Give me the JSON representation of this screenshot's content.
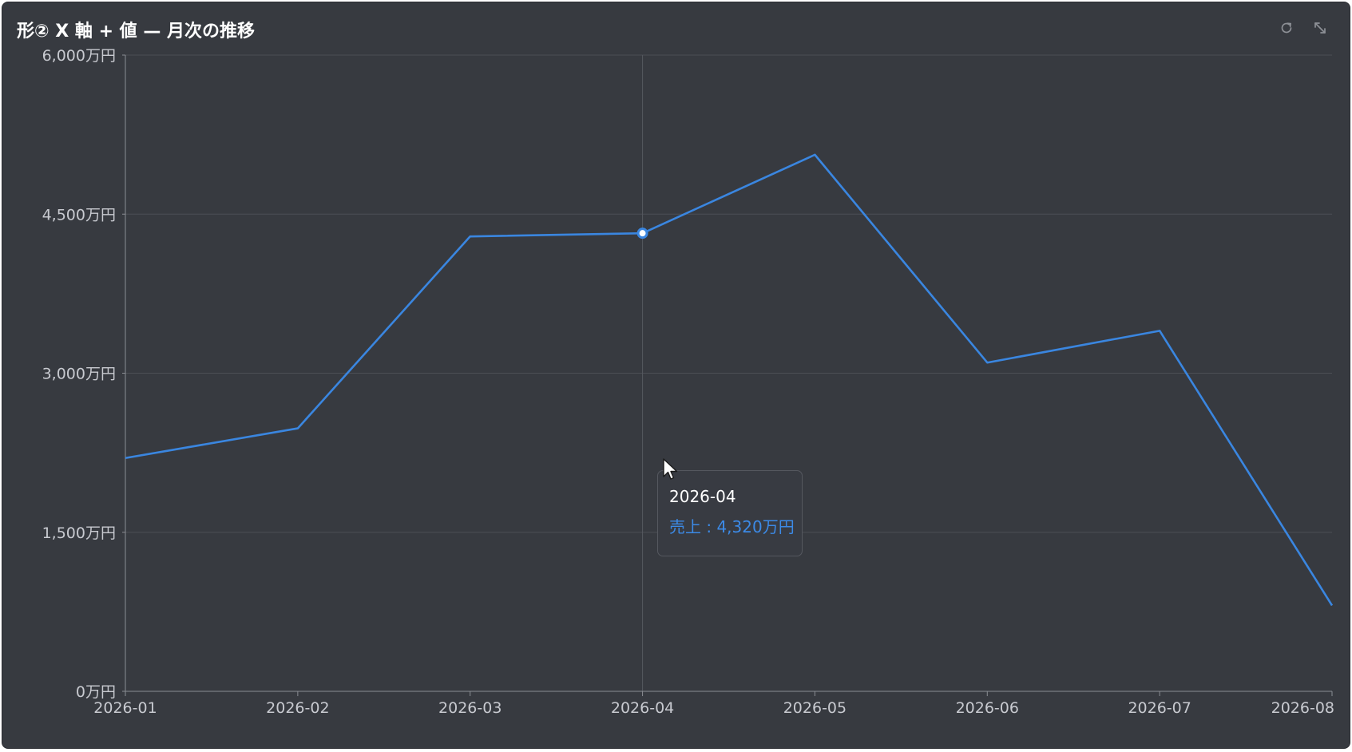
{
  "panel": {
    "title": "形② X 軸 + 値 — 月次の推移",
    "toolbar": {
      "refresh_icon": "refresh-icon",
      "expand_icon": "expand-icon"
    }
  },
  "tooltip": {
    "title": "2026-04",
    "row": "売上 : 4,320万円"
  },
  "colors": {
    "background": "#373a40",
    "line": "#3a86e0",
    "grid": "#4b4e55",
    "axis": "#8a8d93",
    "text": "#c8cad0"
  },
  "chart_data": {
    "type": "line",
    "title": "形② X 軸 + 値 — 月次の推移",
    "xlabel": "",
    "ylabel": "",
    "categories": [
      "2026-01",
      "2026-02",
      "2026-03",
      "2026-04",
      "2026-05",
      "2026-06",
      "2026-07",
      "2026-08"
    ],
    "series": [
      {
        "name": "売上",
        "values": [
          2200,
          2480,
          4290,
          4320,
          5060,
          3100,
          3400,
          810
        ]
      }
    ],
    "ylim": [
      0,
      6000
    ],
    "yticks": [
      0,
      1500,
      3000,
      4500,
      6000
    ],
    "ytick_labels": [
      "0万円",
      "1,500万円",
      "3,000万円",
      "4,500万円",
      "6,000万円"
    ],
    "grid": true,
    "highlighted_category": "2026-04"
  }
}
